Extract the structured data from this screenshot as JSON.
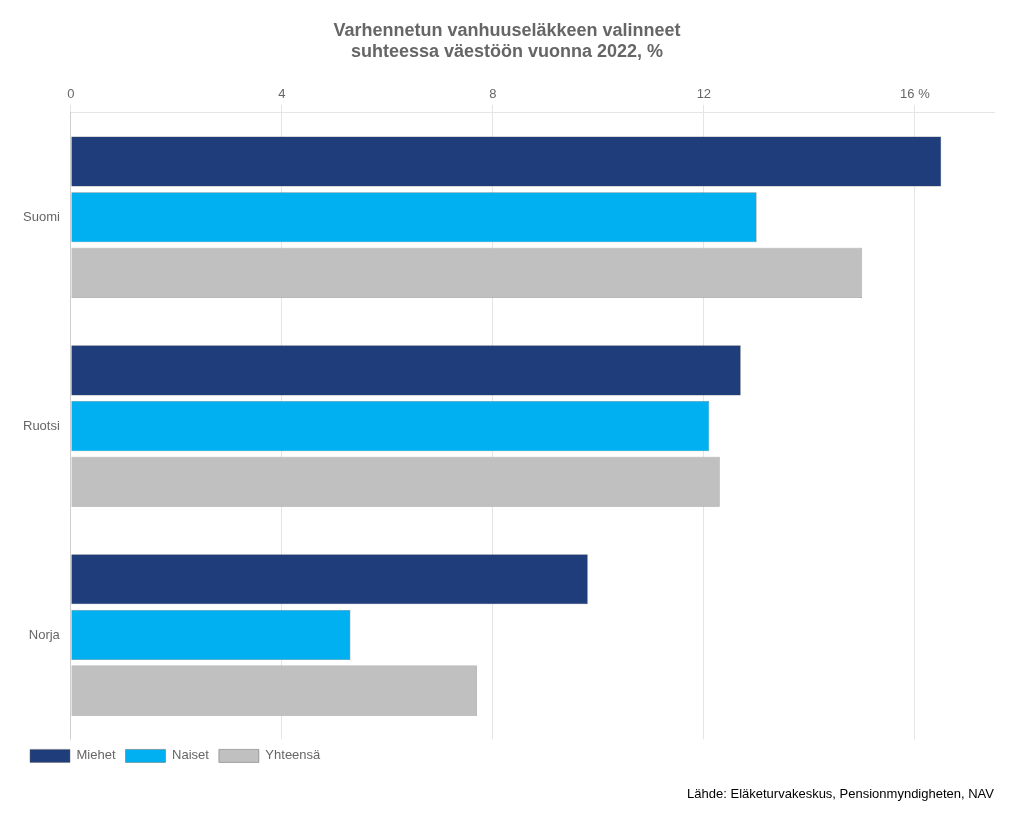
{
  "chart_data": {
    "type": "bar",
    "orientation": "horizontal",
    "title": "Varhennetun vanhuuseläkkeen valinneet\nsuhteessa väestöön vuonna 2022, %",
    "categories": [
      "Suomi",
      "Ruotsi",
      "Norja"
    ],
    "series": [
      {
        "name": "Miehet",
        "color": "#1f3d7a",
        "values": [
          16.5,
          12.7,
          9.8
        ]
      },
      {
        "name": "Naiset",
        "color": "#00b0f0",
        "values": [
          13.0,
          12.1,
          5.3
        ]
      },
      {
        "name": "Yhteensä",
        "color": "#c0c0c0",
        "values": [
          15.0,
          12.3,
          7.7
        ]
      }
    ],
    "xlim": [
      0,
      17.5
    ],
    "xticks": [
      0,
      4,
      8,
      12,
      {
        "value": 16,
        "label": "16 %"
      }
    ],
    "grid": true,
    "legend": "lower left",
    "annotations": [
      "Lähde: Eläketurvakeskus, Pensionmyndigheten, NAV"
    ]
  }
}
